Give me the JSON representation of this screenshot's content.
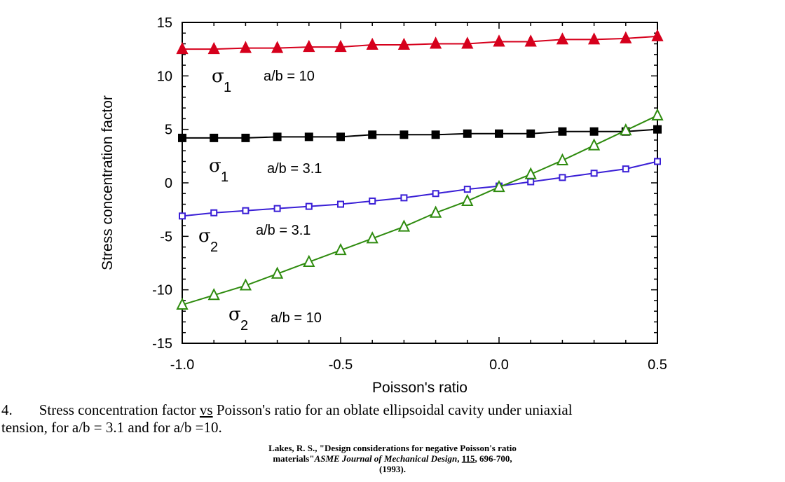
{
  "chart_data": {
    "type": "line",
    "xlabel": "Poisson's ratio",
    "ylabel": "Stress concentration factor",
    "xlim": [
      -1.0,
      0.5
    ],
    "ylim": [
      -15,
      15
    ],
    "xticks": [
      "-1.0",
      "-0.5",
      "0.0",
      "0.5"
    ],
    "xtick_values": [
      -1.0,
      -0.5,
      0.0,
      0.5
    ],
    "yticks": [
      "15",
      "10",
      "5",
      "0",
      "-5",
      "-10",
      "-15"
    ],
    "ytick_values": [
      15,
      10,
      5,
      0,
      -5,
      -10,
      -15
    ],
    "x": [
      -1.0,
      -0.9,
      -0.8,
      -0.7,
      -0.6,
      -0.5,
      -0.4,
      -0.3,
      -0.2,
      -0.1,
      0.0,
      0.1,
      0.2,
      0.3,
      0.4,
      0.5
    ],
    "series": [
      {
        "name": "σ1 a/b = 10",
        "color": "#d6001c",
        "marker": "filled-triangle",
        "values": [
          12.5,
          12.5,
          12.6,
          12.6,
          12.7,
          12.7,
          12.9,
          12.9,
          13.0,
          13.0,
          13.2,
          13.2,
          13.4,
          13.4,
          13.5,
          13.7
        ]
      },
      {
        "name": "σ1 a/b = 3.1",
        "color": "#000000",
        "marker": "filled-square",
        "values": [
          4.2,
          4.2,
          4.2,
          4.3,
          4.3,
          4.3,
          4.5,
          4.5,
          4.5,
          4.6,
          4.6,
          4.6,
          4.8,
          4.8,
          4.8,
          5.0
        ]
      },
      {
        "name": "σ2 a/b = 3.1",
        "color": "#3a1fd6",
        "marker": "open-square",
        "values": [
          -3.1,
          -2.8,
          -2.6,
          -2.4,
          -2.2,
          -2.0,
          -1.7,
          -1.4,
          -1.0,
          -0.6,
          -0.3,
          0.1,
          0.5,
          0.9,
          1.3,
          2.0
        ]
      },
      {
        "name": "σ2 a/b = 10",
        "color": "#2e8b0e",
        "marker": "open-triangle",
        "values": [
          -11.4,
          -10.5,
          -9.6,
          -8.5,
          -7.4,
          -6.3,
          -5.2,
          -4.1,
          -2.8,
          -1.7,
          -0.4,
          0.8,
          2.1,
          3.5,
          4.9,
          6.3
        ]
      }
    ],
    "annotations": [
      {
        "sigma": "σ",
        "sub": "1",
        "text": "a/b = 10"
      },
      {
        "sigma": "σ",
        "sub": "1",
        "text": "a/b = 3.1"
      },
      {
        "sigma": "σ",
        "sub": "2",
        "text": "a/b = 3.1"
      },
      {
        "sigma": "σ",
        "sub": "2",
        "text": "a/b = 10"
      }
    ]
  },
  "caption": {
    "number": "4.",
    "line1_a": "Stress concentration factor ",
    "line1_vs": "vs",
    "line1_b": " Poisson's ratio for an oblate ellipsoidal cavity under uniaxial",
    "line2": "tension, for a/b = 3.1 and for a/b =10."
  },
  "reference": {
    "line1": "Lakes, R. S., \"Design considerations for negative Poisson's ratio",
    "line2_a": "materials\"",
    "journal": "ASME Journal of Mechanical Design",
    "sep": ", ",
    "volume": "115",
    "line2_b": ", 696-700,",
    "line3": "(1993)."
  }
}
